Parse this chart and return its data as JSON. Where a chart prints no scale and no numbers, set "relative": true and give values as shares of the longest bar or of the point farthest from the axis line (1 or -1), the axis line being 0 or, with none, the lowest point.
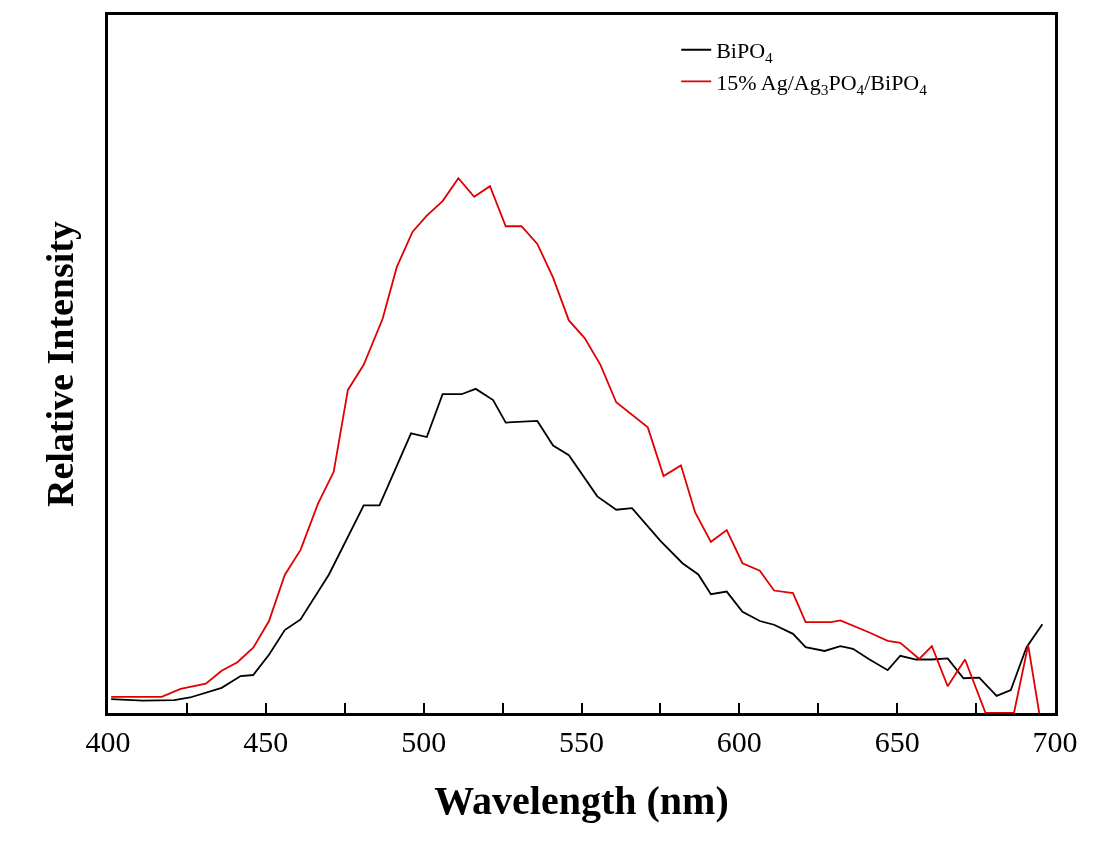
{
  "chart_data": {
    "type": "line",
    "relative": true,
    "xlabel": "Wavelength (nm)",
    "ylabel": "Relative Intensity",
    "xlim": [
      400,
      700
    ],
    "xticks": [
      400,
      {
        "value": 425,
        "label": null
      },
      450,
      {
        "value": 475,
        "label": null
      },
      500,
      {
        "value": 525,
        "label": null
      },
      550,
      {
        "value": 575,
        "label": null
      },
      600,
      {
        "value": 625,
        "label": null
      },
      650,
      {
        "value": 675,
        "label": null
      },
      700
    ],
    "legend": "top right",
    "marker": "none",
    "line_style": "solid",
    "tick_labels": "x",
    "series": [
      {
        "name": "BiPO$_{4}$",
        "color": "#000000",
        "x": [
          401,
          411,
          421,
          426,
          436,
          442,
          446,
          451,
          456,
          461,
          470,
          481,
          486,
          496,
          501,
          506,
          512,
          516.5,
          522,
          526,
          536,
          541,
          546,
          555,
          561,
          566,
          575,
          582,
          587,
          591,
          596,
          601,
          606.5,
          611,
          617,
          621,
          627,
          632,
          636,
          641,
          647,
          651,
          656,
          661,
          666,
          671,
          676,
          681.5,
          686,
          691,
          696
        ],
        "values": [
          0.026,
          0.023,
          0.024,
          0.029,
          0.047,
          0.069,
          0.071,
          0.109,
          0.155,
          0.175,
          0.259,
          0.388,
          0.388,
          0.523,
          0.516,
          0.596,
          0.596,
          0.606,
          0.585,
          0.543,
          0.546,
          0.5,
          0.482,
          0.405,
          0.38,
          0.383,
          0.322,
          0.28,
          0.259,
          0.222,
          0.227,
          0.189,
          0.172,
          0.165,
          0.148,
          0.123,
          0.116,
          0.125,
          0.12,
          0.101,
          0.08,
          0.107,
          0.1,
          0.1,
          0.102,
          0.065,
          0.066,
          0.032,
          0.043,
          0.123,
          0.166
        ]
      },
      {
        "name": "15% Ag/Ag$_{3}$PO$_{4}$/BiPO$_{4}$",
        "color": "#e00000",
        "x": [
          401,
          417,
          423,
          431,
          436,
          441,
          446,
          451,
          456,
          461,
          466.5,
          471.5,
          476,
          481,
          487,
          491.5,
          496.5,
          501,
          506,
          511,
          516,
          521,
          526,
          531,
          536,
          541,
          546,
          551,
          556,
          561,
          571,
          576,
          581.5,
          586,
          591,
          596,
          601,
          606.5,
          611,
          617,
          621,
          629,
          632,
          641,
          647,
          651,
          657,
          661,
          666,
          671.5,
          678,
          687,
          691.5,
          695
        ],
        "values": [
          0.03,
          0.03,
          0.045,
          0.055,
          0.079,
          0.095,
          0.122,
          0.172,
          0.258,
          0.305,
          0.391,
          0.451,
          0.604,
          0.651,
          0.737,
          0.834,
          0.9,
          0.93,
          0.957,
          1.0,
          0.965,
          0.985,
          0.91,
          0.91,
          0.877,
          0.814,
          0.734,
          0.701,
          0.651,
          0.581,
          0.534,
          0.443,
          0.463,
          0.375,
          0.32,
          0.342,
          0.28,
          0.266,
          0.229,
          0.224,
          0.17,
          0.17,
          0.173,
          0.151,
          0.135,
          0.131,
          0.101,
          0.125,
          0.05,
          0.1,
          0,
          0,
          0.127,
          0
        ]
      }
    ]
  }
}
